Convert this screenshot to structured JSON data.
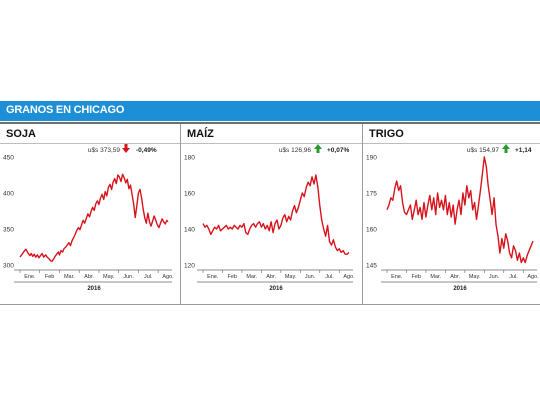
{
  "banner": {
    "title": "GRANOS EN CHICAGO"
  },
  "colors": {
    "line": "#d7141c",
    "up": "#2a9a2a",
    "down": "#d7141c",
    "banner": "#1d8fd6"
  },
  "chart_data": [
    {
      "type": "line",
      "title": "SOJA",
      "price_label": "u$s 373,59",
      "change_label": "-0,49%",
      "change_direction": "down",
      "ylim": [
        300,
        450
      ],
      "yticks": [
        "450",
        "400",
        "350",
        "300"
      ],
      "ytick_values": [
        450,
        400,
        350,
        300
      ],
      "xticks": [
        "Ene.",
        "Feb",
        "Mar.",
        "Abr.",
        "May.",
        "Jun.",
        "Jul.",
        "Ago."
      ],
      "year_label": "2016",
      "x": [
        0,
        0.08,
        0.18,
        0.3,
        0.42,
        0.5,
        0.57,
        0.65,
        0.72,
        0.8,
        0.88,
        0.96,
        1.04,
        1.12,
        1.2,
        1.3,
        1.38,
        1.46,
        1.55,
        1.62,
        1.7,
        1.78,
        1.86,
        1.94,
        2.0,
        2.08,
        2.16,
        2.24,
        2.32,
        2.4,
        2.48,
        2.56,
        2.64,
        2.72,
        2.8,
        2.88,
        2.96,
        3.04,
        3.12,
        3.2,
        3.28,
        3.36,
        3.44,
        3.52,
        3.6,
        3.68,
        3.76,
        3.84,
        3.92,
        4.0,
        4.08,
        4.16,
        4.24,
        4.32,
        4.4,
        4.48,
        4.56,
        4.64,
        4.72,
        4.8,
        4.88,
        4.96,
        5.04,
        5.12,
        5.2,
        5.28,
        5.36,
        5.44,
        5.52,
        5.6,
        5.68,
        5.76,
        5.84,
        5.92,
        6.0,
        6.08,
        6.16,
        6.24,
        6.32,
        6.4,
        6.48,
        6.56,
        6.64,
        6.72,
        6.8,
        6.88,
        6.96,
        7.04,
        7.12,
        7.2,
        7.28,
        7.36,
        7.44,
        7.5
      ],
      "values": [
        311,
        314,
        318,
        322,
        316,
        313,
        316,
        312,
        315,
        311,
        314,
        310,
        313,
        316,
        311,
        314,
        311,
        309,
        306,
        305,
        308,
        312,
        315,
        318,
        314,
        320,
        318,
        323,
        325,
        328,
        331,
        327,
        334,
        338,
        343,
        348,
        352,
        349,
        356,
        362,
        358,
        365,
        371,
        367,
        374,
        380,
        376,
        385,
        389,
        384,
        393,
        398,
        391,
        402,
        396,
        408,
        412,
        405,
        415,
        420,
        413,
        425,
        422,
        416,
        426,
        421,
        414,
        419,
        406,
        411,
        398,
        384,
        366,
        382,
        400,
        405,
        393,
        378,
        366,
        358,
        372,
        360,
        354,
        361,
        368,
        362,
        356,
        352,
        358,
        364,
        360,
        357,
        362,
        360
      ]
    },
    {
      "type": "line",
      "title": "MAÍZ",
      "price_label": "u$s 126,96",
      "change_label": "+0,07%",
      "change_direction": "up",
      "ylim": [
        120,
        180
      ],
      "yticks": [
        "180",
        "160",
        "140",
        "120"
      ],
      "ytick_values": [
        180,
        160,
        140,
        120
      ],
      "xticks": [
        "Ene.",
        "Feb",
        "Mar.",
        "Abr.",
        "May.",
        "Jun.",
        "Jul.",
        "Ago."
      ],
      "year_label": "2016",
      "x": [
        0,
        0.1,
        0.2,
        0.3,
        0.4,
        0.5,
        0.6,
        0.7,
        0.8,
        0.9,
        1.0,
        1.1,
        1.2,
        1.3,
        1.4,
        1.5,
        1.6,
        1.7,
        1.8,
        1.9,
        2.0,
        2.1,
        2.2,
        2.3,
        2.4,
        2.5,
        2.6,
        2.7,
        2.8,
        2.9,
        3.0,
        3.1,
        3.2,
        3.3,
        3.4,
        3.5,
        3.6,
        3.7,
        3.8,
        3.9,
        4.0,
        4.1,
        4.2,
        4.3,
        4.4,
        4.5,
        4.6,
        4.7,
        4.8,
        4.9,
        5.0,
        5.1,
        5.2,
        5.3,
        5.4,
        5.5,
        5.6,
        5.7,
        5.8,
        5.9,
        6.0,
        6.1,
        6.2,
        6.3,
        6.4,
        6.5,
        6.6,
        6.7,
        6.8,
        6.9,
        7.0,
        7.1,
        7.2,
        7.3,
        7.4,
        7.5
      ],
      "values": [
        143,
        141,
        142,
        140,
        137,
        139,
        141,
        140,
        142,
        139,
        140,
        141,
        142,
        140,
        141,
        140,
        142,
        141,
        140,
        142,
        141,
        143,
        138,
        137,
        140,
        142,
        143,
        141,
        143,
        144,
        141,
        143,
        140,
        142,
        139,
        144,
        138,
        143,
        145,
        140,
        142,
        146,
        148,
        144,
        147,
        145,
        150,
        153,
        149,
        152,
        156,
        160,
        158,
        163,
        166,
        164,
        169,
        165,
        170,
        163,
        153,
        145,
        140,
        136,
        142,
        133,
        131,
        134,
        130,
        128,
        129,
        127,
        128,
        126,
        126,
        127
      ]
    },
    {
      "type": "line",
      "title": "TRIGO",
      "price_label": "u$s 154,97",
      "change_label": "+1,14",
      "change_direction": "up",
      "ylim": [
        145,
        190
      ],
      "yticks": [
        "190",
        "175",
        "160",
        "145"
      ],
      "ytick_values": [
        190,
        175,
        160,
        145
      ],
      "xticks": [
        "Ene.",
        "Feb",
        "Mar.",
        "Abr.",
        "May.",
        "Jun.",
        "Jul.",
        "Ago."
      ],
      "year_label": "2016",
      "x": [
        0,
        0.1,
        0.2,
        0.3,
        0.4,
        0.5,
        0.6,
        0.7,
        0.8,
        0.9,
        1.0,
        1.1,
        1.2,
        1.3,
        1.4,
        1.5,
        1.6,
        1.7,
        1.8,
        1.9,
        2.0,
        2.1,
        2.2,
        2.3,
        2.4,
        2.5,
        2.6,
        2.7,
        2.8,
        2.9,
        3.0,
        3.1,
        3.2,
        3.3,
        3.4,
        3.5,
        3.6,
        3.7,
        3.8,
        3.9,
        4.0,
        4.1,
        4.2,
        4.3,
        4.4,
        4.5,
        4.6,
        4.7,
        4.8,
        4.9,
        5.0,
        5.1,
        5.2,
        5.3,
        5.4,
        5.5,
        5.6,
        5.7,
        5.8,
        5.9,
        6.0,
        6.1,
        6.2,
        6.3,
        6.4,
        6.5,
        6.6,
        6.7,
        6.8,
        6.9,
        7.0,
        7.1,
        7.2,
        7.3,
        7.4,
        7.5
      ],
      "values": [
        168,
        170,
        173,
        172,
        177,
        180,
        176,
        178,
        171,
        167,
        166,
        168,
        170,
        164,
        168,
        172,
        166,
        169,
        164,
        171,
        165,
        170,
        174,
        168,
        173,
        166,
        175,
        169,
        172,
        168,
        174,
        166,
        171,
        165,
        170,
        162,
        168,
        172,
        166,
        175,
        170,
        178,
        173,
        176,
        168,
        171,
        164,
        170,
        176,
        183,
        190,
        186,
        178,
        172,
        166,
        173,
        162,
        157,
        150,
        156,
        152,
        158,
        155,
        150,
        148,
        153,
        151,
        147,
        150,
        146,
        148,
        146,
        149,
        151,
        153,
        155
      ]
    }
  ]
}
